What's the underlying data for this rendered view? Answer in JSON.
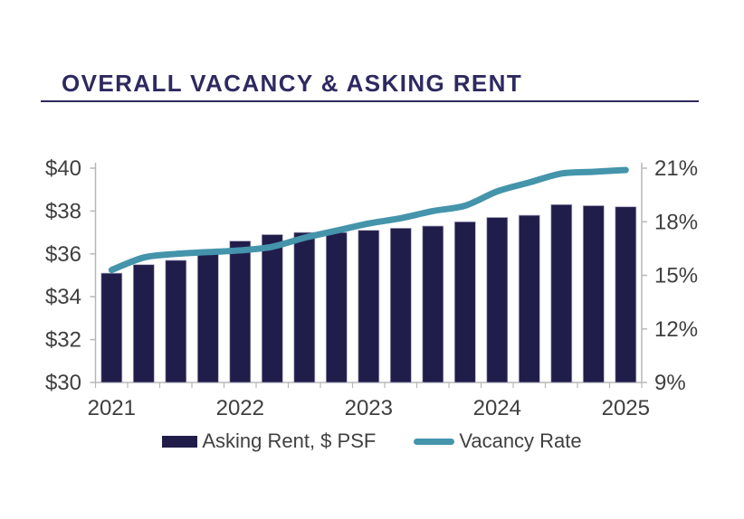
{
  "header": {
    "title": "OVERALL VACANCY & ASKING RENT"
  },
  "colors": {
    "title_navy": "#2e2960",
    "bar_navy": "#211d4a",
    "bar_edge": "#aaa8c0",
    "line_teal": "#4494ab",
    "axis_text": "#3f3f3f",
    "axis_line": "#b7b7b7",
    "legend_text": "#404040"
  },
  "chart_data": {
    "type": "bar+line combo",
    "title": "OVERALL VACANCY & ASKING RENT",
    "categories": [
      "Q1 2021",
      "Q2 2021",
      "Q3 2021",
      "Q4 2021",
      "Q1 2022",
      "Q2 2022",
      "Q3 2022",
      "Q4 2022",
      "Q1 2023",
      "Q2 2023",
      "Q3 2023",
      "Q4 2023",
      "Q1 2024",
      "Q2 2024",
      "Q3 2024",
      "Q4 2024",
      "Q1 2025"
    ],
    "x_axis_labels": [
      "2021",
      "2022",
      "2023",
      "2024",
      "2025"
    ],
    "x_label_indices": [
      0,
      4,
      8,
      12,
      16
    ],
    "series": [
      {
        "name": "Asking Rent, $ PSF",
        "type": "bar",
        "axis": "left",
        "values": [
          35.1,
          35.5,
          35.7,
          36.0,
          36.6,
          36.9,
          37.0,
          37.0,
          37.1,
          37.2,
          37.3,
          37.5,
          37.7,
          37.8,
          38.3,
          38.25,
          38.2
        ]
      },
      {
        "name": "Vacancy Rate",
        "type": "line",
        "axis": "right",
        "values": [
          15.3,
          16.0,
          16.2,
          16.3,
          16.4,
          16.6,
          17.1,
          17.5,
          17.9,
          18.2,
          18.6,
          18.9,
          19.7,
          20.2,
          20.7,
          20.8,
          20.9
        ]
      }
    ],
    "left_axis": {
      "min": 30,
      "max": 40,
      "ticks": [
        "$40",
        "$38",
        "$36",
        "$34",
        "$32",
        "$30"
      ]
    },
    "right_axis": {
      "min": 9,
      "max": 21,
      "ticks": [
        "21%",
        "18%",
        "15%",
        "12%",
        "9%"
      ]
    },
    "grid": "none",
    "legend_position": "bottom"
  },
  "legend": {
    "items": [
      {
        "label": "Asking Rent, $ PSF",
        "swatch": "bar"
      },
      {
        "label": "Vacancy Rate",
        "swatch": "line"
      }
    ]
  }
}
